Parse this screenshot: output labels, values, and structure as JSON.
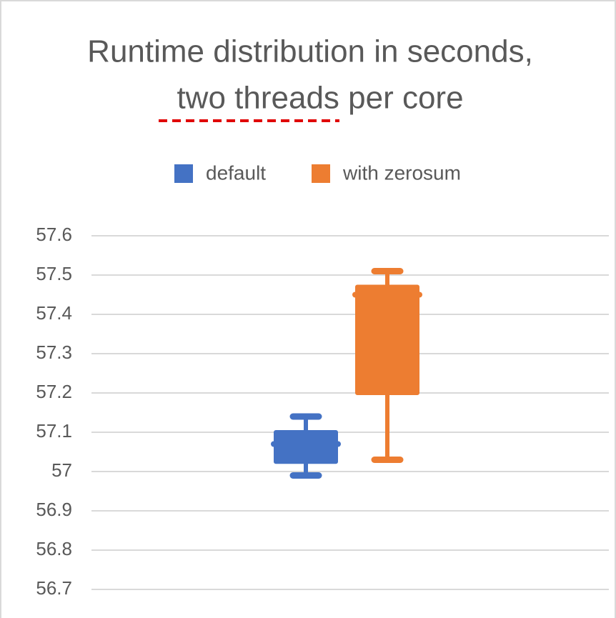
{
  "chart_data": {
    "type": "box",
    "title_lines": [
      "Runtime distribution in seconds,",
      "two threads per core"
    ],
    "series": [
      {
        "name": "default",
        "color": "#4472c4",
        "min": 56.99,
        "q1": 57.025,
        "median": 57.07,
        "q3": 57.1,
        "max": 57.14
      },
      {
        "name": "with zerosum",
        "color": "#ed7d31",
        "min": 57.03,
        "q1": 57.2,
        "median": 57.45,
        "q3": 57.47,
        "max": 57.51
      }
    ],
    "ylim": [
      56.7,
      57.6
    ],
    "yticks": [
      56.7,
      56.8,
      56.9,
      57,
      57.1,
      57.2,
      57.3,
      57.4,
      57.5,
      57.6
    ],
    "grid": true
  }
}
